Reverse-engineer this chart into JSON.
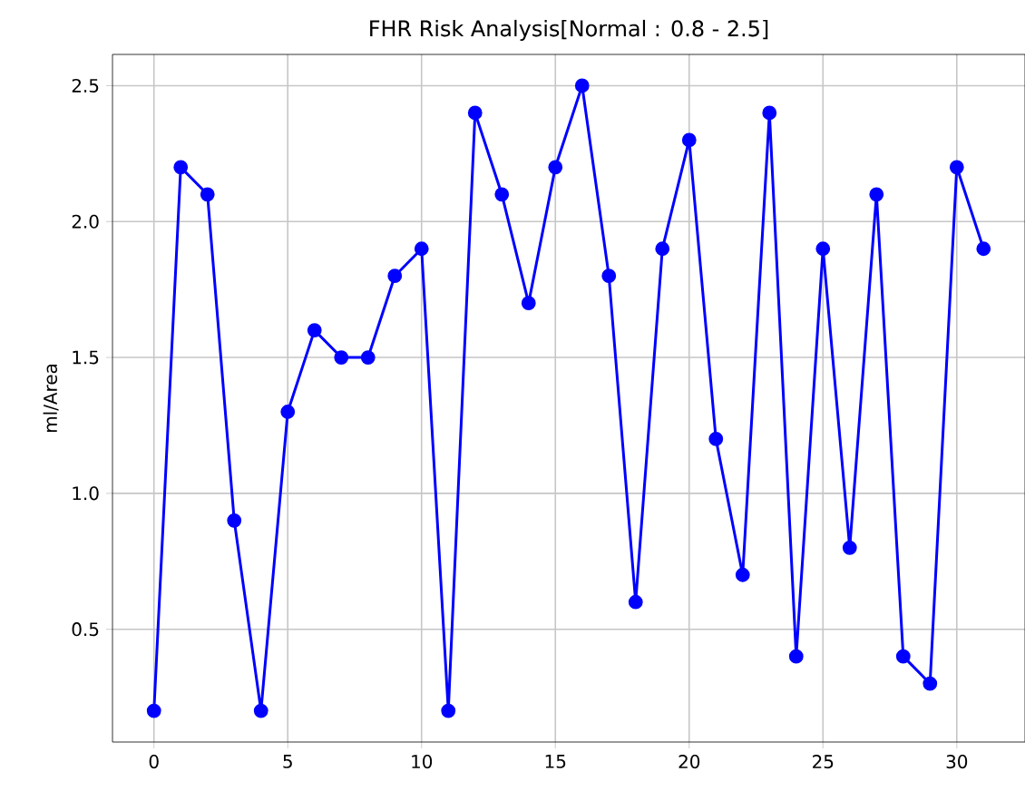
{
  "chart_data": {
    "type": "line",
    "title": "FHR Risk Analysis[Normal : 0.8 - 2.5]",
    "ylabel": "ml/Area",
    "x": [
      0,
      1,
      2,
      3,
      4,
      5,
      6,
      7,
      8,
      9,
      10,
      11,
      12,
      13,
      14,
      15,
      16,
      17,
      18,
      19,
      20,
      21,
      22,
      23,
      24,
      25,
      26,
      27,
      28,
      29,
      30,
      31
    ],
    "series": [
      {
        "color": "#0000ff",
        "values": [
          0.2,
          2.2,
          2.1,
          0.9,
          0.2,
          1.3,
          1.6,
          1.5,
          1.5,
          1.8,
          1.9,
          0.2,
          2.4,
          2.1,
          1.7,
          2.2,
          2.5,
          1.8,
          0.6,
          1.9,
          2.3,
          1.2,
          0.7,
          2.4,
          0.4,
          1.9,
          0.8,
          2.1,
          0.4,
          0.3,
          2.2,
          1.9
        ]
      }
    ],
    "xlim": [
      -1.55,
      32.55
    ],
    "ylim": [
      0.085,
      2.615
    ],
    "xticks": [
      0,
      5,
      10,
      15,
      20,
      25,
      30
    ],
    "yticks": [
      {
        "value": 0.5,
        "label": "0.5"
      },
      {
        "value": 1.0,
        "label": "1.0"
      },
      {
        "value": 1.5,
        "label": "1.5"
      },
      {
        "value": 2.0,
        "label": "2.0"
      },
      {
        "value": 2.5,
        "label": "2.5"
      }
    ],
    "grid": true,
    "marker": "circle",
    "line_style": "solid"
  }
}
